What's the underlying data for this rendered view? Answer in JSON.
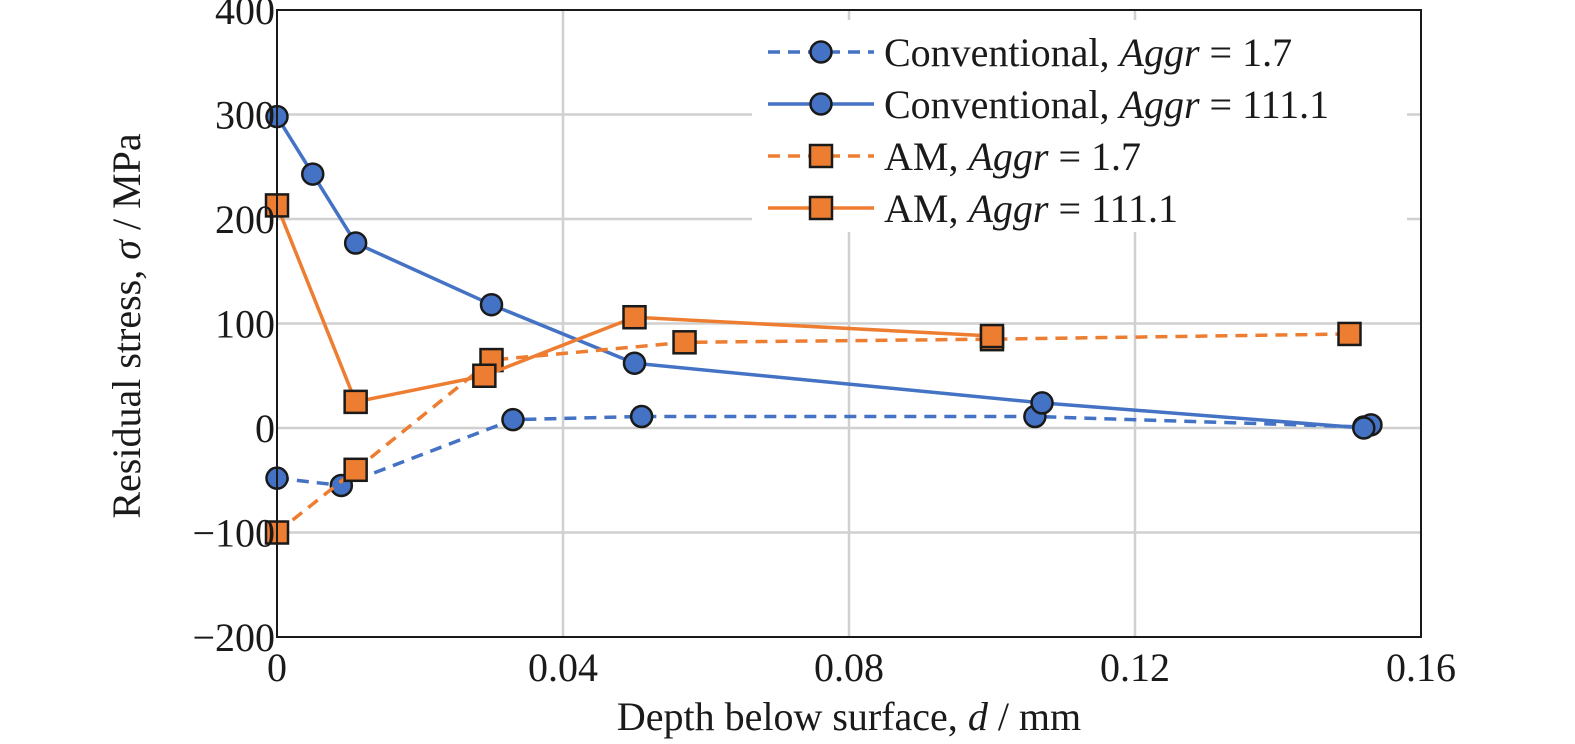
{
  "chart_data": {
    "type": "line",
    "xlabel": {
      "prefix": "Depth below surface, ",
      "var": "d",
      "suffix": " / mm"
    },
    "ylabel": {
      "prefix": "Residual stress, ",
      "var": "σ",
      "suffix": " / MPa"
    },
    "xlim": [
      0,
      0.16
    ],
    "ylim": [
      -200,
      400
    ],
    "xticks": [
      0,
      0.04,
      0.08,
      0.12,
      0.16
    ],
    "xtick_labels": [
      "0",
      "0.04",
      "0.08",
      "0.12",
      "0.16"
    ],
    "yticks": [
      -200,
      -100,
      0,
      100,
      200,
      300,
      400
    ],
    "ytick_labels": [
      "−200",
      "−100",
      "0",
      "100",
      "200",
      "300",
      "400"
    ],
    "grid": true,
    "legend_position": "top-right",
    "series": [
      {
        "name": "Conventional, Aggr = 1.7",
        "label_prefix": "Conventional, ",
        "label_var": "Aggr",
        "label_value": " = 1.7",
        "color": "#4472c4",
        "dash": "dashed",
        "marker": "circle",
        "x": [
          0,
          0.009,
          0.033,
          0.051,
          0.106,
          0.152,
          0.153
        ],
        "y": [
          -48,
          -55,
          8,
          11,
          11,
          1,
          3
        ]
      },
      {
        "name": "Conventional, Aggr = 111.1",
        "label_prefix": "Conventional, ",
        "label_var": "Aggr",
        "label_value": " = 111.1",
        "color": "#4472c4",
        "dash": "solid",
        "marker": "circle",
        "x": [
          0,
          0.005,
          0.011,
          0.03,
          0.05,
          0.107,
          0.152
        ],
        "y": [
          298,
          243,
          177,
          118,
          62,
          24,
          0
        ]
      },
      {
        "name": "AM, Aggr = 1.7",
        "label_prefix": "AM, ",
        "label_var": "Aggr",
        "label_value": " = 1.7",
        "color": "#ed7d31",
        "dash": "dashed",
        "marker": "square",
        "x": [
          0,
          0.011,
          0.03,
          0.057,
          0.1,
          0.15
        ],
        "y": [
          -100,
          -40,
          65,
          82,
          85,
          90
        ]
      },
      {
        "name": "AM, Aggr = 111.1",
        "label_prefix": "AM, ",
        "label_var": "Aggr",
        "label_value": " = 111.1",
        "color": "#ed7d31",
        "dash": "solid",
        "marker": "square",
        "x": [
          0,
          0.011,
          0.029,
          0.05,
          0.1
        ],
        "y": [
          213,
          25,
          50,
          106,
          88
        ]
      }
    ]
  }
}
